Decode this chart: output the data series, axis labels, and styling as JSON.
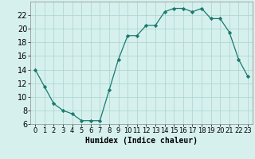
{
  "x": [
    0,
    1,
    2,
    3,
    4,
    5,
    6,
    7,
    8,
    9,
    10,
    11,
    12,
    13,
    14,
    15,
    16,
    17,
    18,
    19,
    20,
    21,
    22,
    23
  ],
  "y": [
    14,
    11.5,
    9,
    8,
    7.5,
    6.5,
    6.5,
    6.5,
    11,
    15.5,
    19,
    19,
    20.5,
    20.5,
    22.5,
    23,
    23,
    22.5,
    23,
    21.5,
    21.5,
    19.5,
    15.5,
    13
  ],
  "line_color": "#1a7a6e",
  "marker": "D",
  "marker_size": 2.2,
  "bg_color": "#d6f0ee",
  "grid_color": "#a8d4cf",
  "xlabel": "Humidex (Indice chaleur)",
  "xlabel_fontsize": 7,
  "ylabel_fontsize": 7,
  "tick_fontsize": 6,
  "xlim": [
    -0.5,
    23.5
  ],
  "ylim": [
    6,
    24
  ],
  "yticks": [
    6,
    8,
    10,
    12,
    14,
    16,
    18,
    20,
    22
  ],
  "xticks": [
    0,
    1,
    2,
    3,
    4,
    5,
    6,
    7,
    8,
    9,
    10,
    11,
    12,
    13,
    14,
    15,
    16,
    17,
    18,
    19,
    20,
    21,
    22,
    23
  ]
}
